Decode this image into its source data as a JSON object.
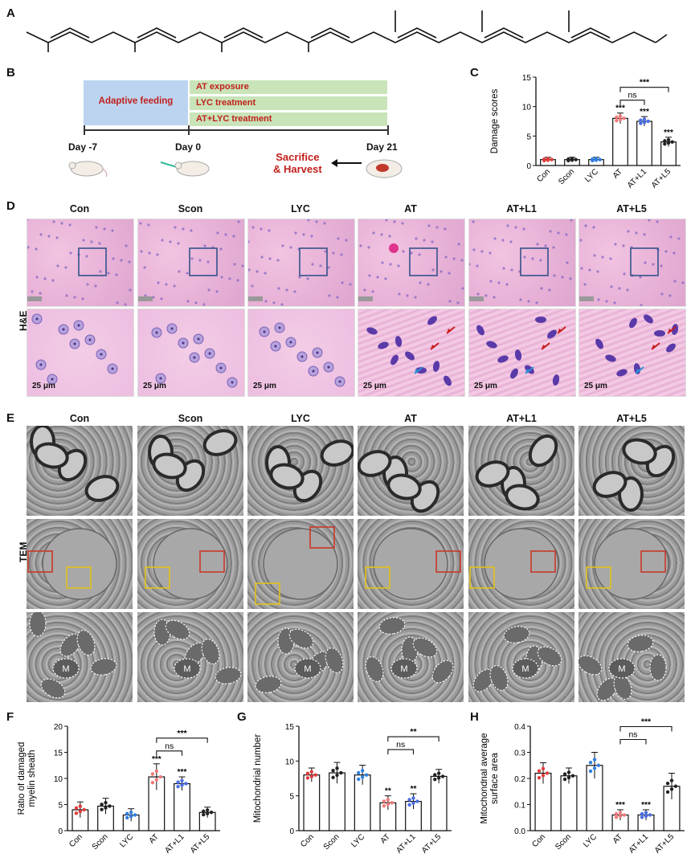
{
  "panels": {
    "A": "A",
    "B": "B",
    "C": "C",
    "D": "D",
    "E": "E",
    "F": "F",
    "G": "G",
    "H": "H"
  },
  "timeline": {
    "adaptive_feeding": "Adaptive feeding",
    "treatments": [
      "AT exposure",
      "LYC treatment",
      "AT+LYC treatment"
    ],
    "days": [
      "Day -7",
      "Day 0",
      "Day 21"
    ],
    "sacrifice": [
      "Sacrifice",
      "& Harvest"
    ]
  },
  "groups": [
    "Con",
    "Scon",
    "LYC",
    "AT",
    "AT+L1",
    "AT+L5"
  ],
  "row_labels": {
    "he": "H&E",
    "tem": "TEM"
  },
  "scale_bar": "25 μm",
  "mito_label": "M",
  "colors": {
    "Con": "#e03c3c",
    "Scon": "#222222",
    "LYC": "#2f7fe0",
    "AT": "#f07a7a",
    "AT+L1": "#4a6ee0",
    "AT+L5": "#222222"
  },
  "chart_data": [
    {
      "type": "bar",
      "panel": "C",
      "categories": [
        "Con",
        "Scon",
        "LYC",
        "AT",
        "AT+L1",
        "AT+L5"
      ],
      "values": [
        1.0,
        1.0,
        1.0,
        8.0,
        7.5,
        4.0
      ],
      "errors": [
        0.4,
        0.4,
        0.4,
        0.9,
        0.8,
        0.8
      ],
      "ylabel": "Damage scores",
      "ylim": [
        0,
        15
      ],
      "yticks": [
        0,
        5,
        10,
        15
      ],
      "stars": [
        "",
        "",
        "",
        "***",
        "***",
        "***"
      ],
      "brackets": [
        {
          "from": 3,
          "to": 4,
          "label": "ns"
        },
        {
          "from": 3,
          "to": 5,
          "label": "***"
        }
      ]
    },
    {
      "type": "bar",
      "panel": "F",
      "categories": [
        "Con",
        "Scon",
        "LYC",
        "AT",
        "AT+L1",
        "AT+L5"
      ],
      "values": [
        4.0,
        4.7,
        3.0,
        10.3,
        9.0,
        3.5
      ],
      "errors": [
        1.5,
        1.5,
        1.2,
        2.5,
        1.3,
        1.0
      ],
      "ylabel": "Ratio of damaged myelin sheath",
      "ylim": [
        0,
        20
      ],
      "yticks": [
        0,
        5,
        10,
        15,
        20
      ],
      "stars": [
        "",
        "",
        "",
        "***",
        "***",
        ""
      ],
      "brackets": [
        {
          "from": 3,
          "to": 4,
          "label": "ns"
        },
        {
          "from": 3,
          "to": 5,
          "label": "***"
        }
      ]
    },
    {
      "type": "bar",
      "panel": "G",
      "categories": [
        "Con",
        "Scon",
        "LYC",
        "AT",
        "AT+L1",
        "AT+L5"
      ],
      "values": [
        8.0,
        8.3,
        8.0,
        4.0,
        4.2,
        7.8
      ],
      "errors": [
        1.0,
        1.5,
        1.4,
        1.0,
        1.1,
        1.0
      ],
      "ylabel": "Mitochondrial number",
      "ylim": [
        0,
        15
      ],
      "yticks": [
        0,
        5,
        10,
        15
      ],
      "stars": [
        "",
        "",
        "",
        "**",
        "**",
        ""
      ],
      "brackets": [
        {
          "from": 3,
          "to": 4,
          "label": "ns"
        },
        {
          "from": 3,
          "to": 5,
          "label": "**"
        }
      ]
    },
    {
      "type": "bar",
      "panel": "H",
      "categories": [
        "Con",
        "Scon",
        "LYC",
        "AT",
        "AT+L1",
        "AT+L5"
      ],
      "values": [
        0.22,
        0.21,
        0.25,
        0.06,
        0.06,
        0.17
      ],
      "errors": [
        0.04,
        0.03,
        0.05,
        0.02,
        0.02,
        0.05
      ],
      "ylabel": "Mitochondrial average surface area",
      "ylim": [
        0,
        0.4
      ],
      "yticks": [
        0.0,
        0.1,
        0.2,
        0.3,
        0.4
      ],
      "stars": [
        "",
        "",
        "",
        "***",
        "***",
        ""
      ],
      "brackets": [
        {
          "from": 3,
          "to": 4,
          "label": "ns"
        },
        {
          "from": 3,
          "to": 5,
          "label": "***"
        }
      ]
    }
  ]
}
